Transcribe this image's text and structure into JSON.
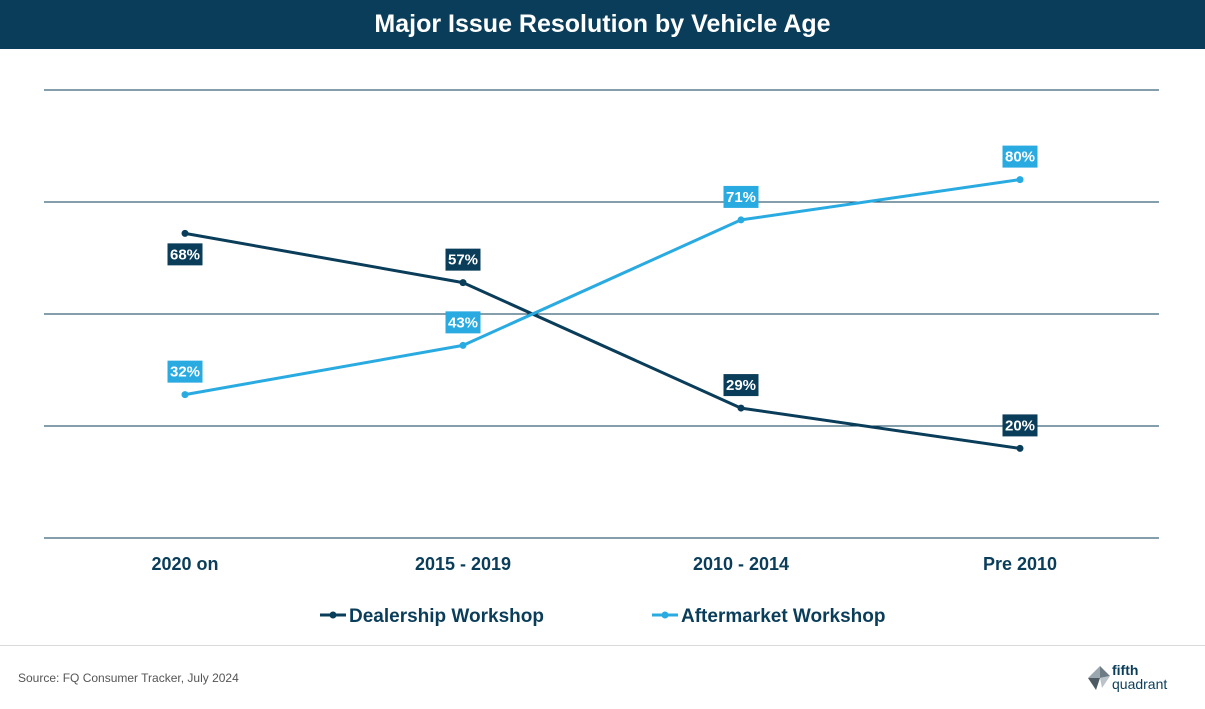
{
  "chart_data": {
    "type": "line",
    "title": "Major Issue Resolution by Vehicle Age",
    "categories": [
      "2020 on",
      "2015 - 2019",
      "2010 - 2014",
      "Pre 2010"
    ],
    "ylim": [
      0,
      100
    ],
    "grid": true,
    "legend_position": "bottom",
    "series": [
      {
        "name": "Dealership Workshop",
        "values": [
          68,
          57,
          29,
          20
        ],
        "labels": [
          "68%",
          "57%",
          "29%",
          "20%"
        ],
        "color": "#0a3d5a"
      },
      {
        "name": "Aftermarket Workshop",
        "values": [
          32,
          43,
          71,
          80
        ],
        "labels": [
          "32%",
          "43%",
          "71%",
          "80%"
        ],
        "color": "#29abe2"
      }
    ]
  },
  "footer": {
    "source": "Source: FQ Consumer Tracker, July 2024",
    "logo_line1": "fifth",
    "logo_line2": "quadrant"
  }
}
